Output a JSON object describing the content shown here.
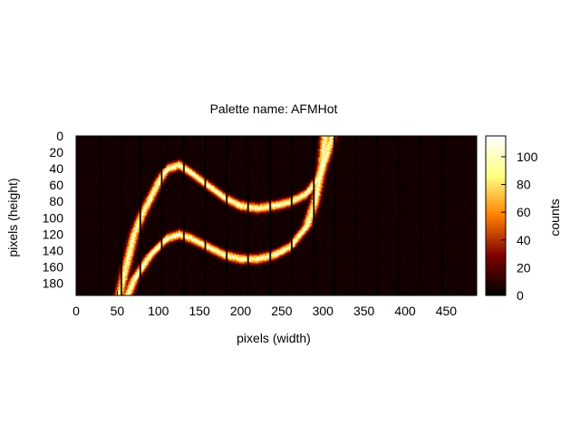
{
  "chart_data": {
    "type": "heatmap",
    "title": "Palette name: AFMHot",
    "xlabel": "pixels (width)",
    "ylabel": "pixels (height)",
    "colorbar_label": "counts",
    "palette": "AFMHot",
    "xlim": [
      0,
      487
    ],
    "ylim": [
      0,
      195
    ],
    "y_reversed": true,
    "x_ticks": [
      0,
      50,
      100,
      150,
      200,
      250,
      300,
      350,
      400,
      450
    ],
    "y_ticks": [
      0,
      20,
      40,
      60,
      80,
      100,
      120,
      140,
      160,
      180
    ],
    "colorbar_ticks": [
      0,
      20,
      40,
      60,
      80,
      100
    ],
    "colorbar_range": [
      0,
      115
    ],
    "background_counts": 5,
    "vertical_gaps_x": [
      30,
      55,
      78,
      104,
      131,
      157,
      183,
      209,
      236,
      262,
      289,
      314,
      340,
      366,
      393,
      419,
      445
    ],
    "bands": [
      {
        "name": "",
        "width": 4,
        "peak": 95,
        "points": [
          {
            "x": 52,
            "y": 195
          },
          {
            "x": 60,
            "y": 160
          },
          {
            "x": 70,
            "y": 120
          },
          {
            "x": 80,
            "y": 95
          },
          {
            "x": 90,
            "y": 75
          },
          {
            "x": 100,
            "y": 55
          },
          {
            "x": 110,
            "y": 40
          },
          {
            "x": 125,
            "y": 35
          },
          {
            "x": 140,
            "y": 45
          },
          {
            "x": 160,
            "y": 60
          },
          {
            "x": 180,
            "y": 75
          },
          {
            "x": 200,
            "y": 85
          },
          {
            "x": 220,
            "y": 88
          },
          {
            "x": 240,
            "y": 85
          },
          {
            "x": 260,
            "y": 80
          },
          {
            "x": 280,
            "y": 70
          },
          {
            "x": 295,
            "y": 50
          },
          {
            "x": 305,
            "y": 20
          },
          {
            "x": 310,
            "y": 0
          }
        ]
      },
      {
        "name": "",
        "width": 4,
        "peak": 95,
        "points": [
          {
            "x": 62,
            "y": 195
          },
          {
            "x": 70,
            "y": 175
          },
          {
            "x": 80,
            "y": 160
          },
          {
            "x": 90,
            "y": 145
          },
          {
            "x": 100,
            "y": 135
          },
          {
            "x": 110,
            "y": 125
          },
          {
            "x": 125,
            "y": 120
          },
          {
            "x": 140,
            "y": 125
          },
          {
            "x": 160,
            "y": 135
          },
          {
            "x": 180,
            "y": 145
          },
          {
            "x": 200,
            "y": 150
          },
          {
            "x": 220,
            "y": 150
          },
          {
            "x": 240,
            "y": 145
          },
          {
            "x": 260,
            "y": 135
          },
          {
            "x": 280,
            "y": 110
          },
          {
            "x": 290,
            "y": 80
          },
          {
            "x": 298,
            "y": 40
          },
          {
            "x": 302,
            "y": 0
          }
        ]
      }
    ]
  }
}
